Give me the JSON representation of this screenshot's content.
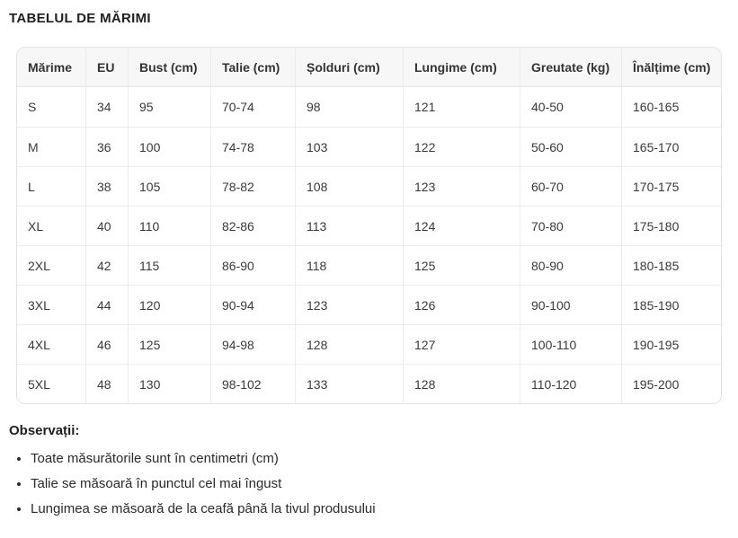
{
  "page": {
    "title": "TABELUL DE MĂRIMI"
  },
  "table": {
    "columns": [
      "Mărime",
      "EU",
      "Bust (cm)",
      "Talie (cm)",
      "Șolduri (cm)",
      "Lungime (cm)",
      "Greutate (kg)",
      "Înălțime (cm)"
    ],
    "rows": [
      [
        "S",
        "34",
        "95",
        "70-74",
        "98",
        "121",
        "40-50",
        "160-165"
      ],
      [
        "M",
        "36",
        "100",
        "74-78",
        "103",
        "122",
        "50-60",
        "165-170"
      ],
      [
        "L",
        "38",
        "105",
        "78-82",
        "108",
        "123",
        "60-70",
        "170-175"
      ],
      [
        "XL",
        "40",
        "110",
        "82-86",
        "113",
        "124",
        "70-80",
        "175-180"
      ],
      [
        "2XL",
        "42",
        "115",
        "86-90",
        "118",
        "125",
        "80-90",
        "180-185"
      ],
      [
        "3XL",
        "44",
        "120",
        "90-94",
        "123",
        "126",
        "90-100",
        "185-190"
      ],
      [
        "4XL",
        "46",
        "125",
        "94-98",
        "128",
        "127",
        "100-110",
        "190-195"
      ],
      [
        "5XL",
        "48",
        "130",
        "98-102",
        "133",
        "128",
        "110-120",
        "195-200"
      ]
    ]
  },
  "notes": {
    "heading": "Observații:",
    "items": [
      "Toate măsurătorile sunt în centimetri (cm)",
      "Talie se măsoară în punctul cel mai îngust",
      "Lungimea se măsoară de la ceafă până la tivul produsului"
    ]
  },
  "colors": {
    "header_bg": "#f7f7f8",
    "outer_border": "#e3e3e6",
    "inner_border": "#ececef",
    "text": "#3a3a3a",
    "heading_text": "#1f1f1f"
  }
}
